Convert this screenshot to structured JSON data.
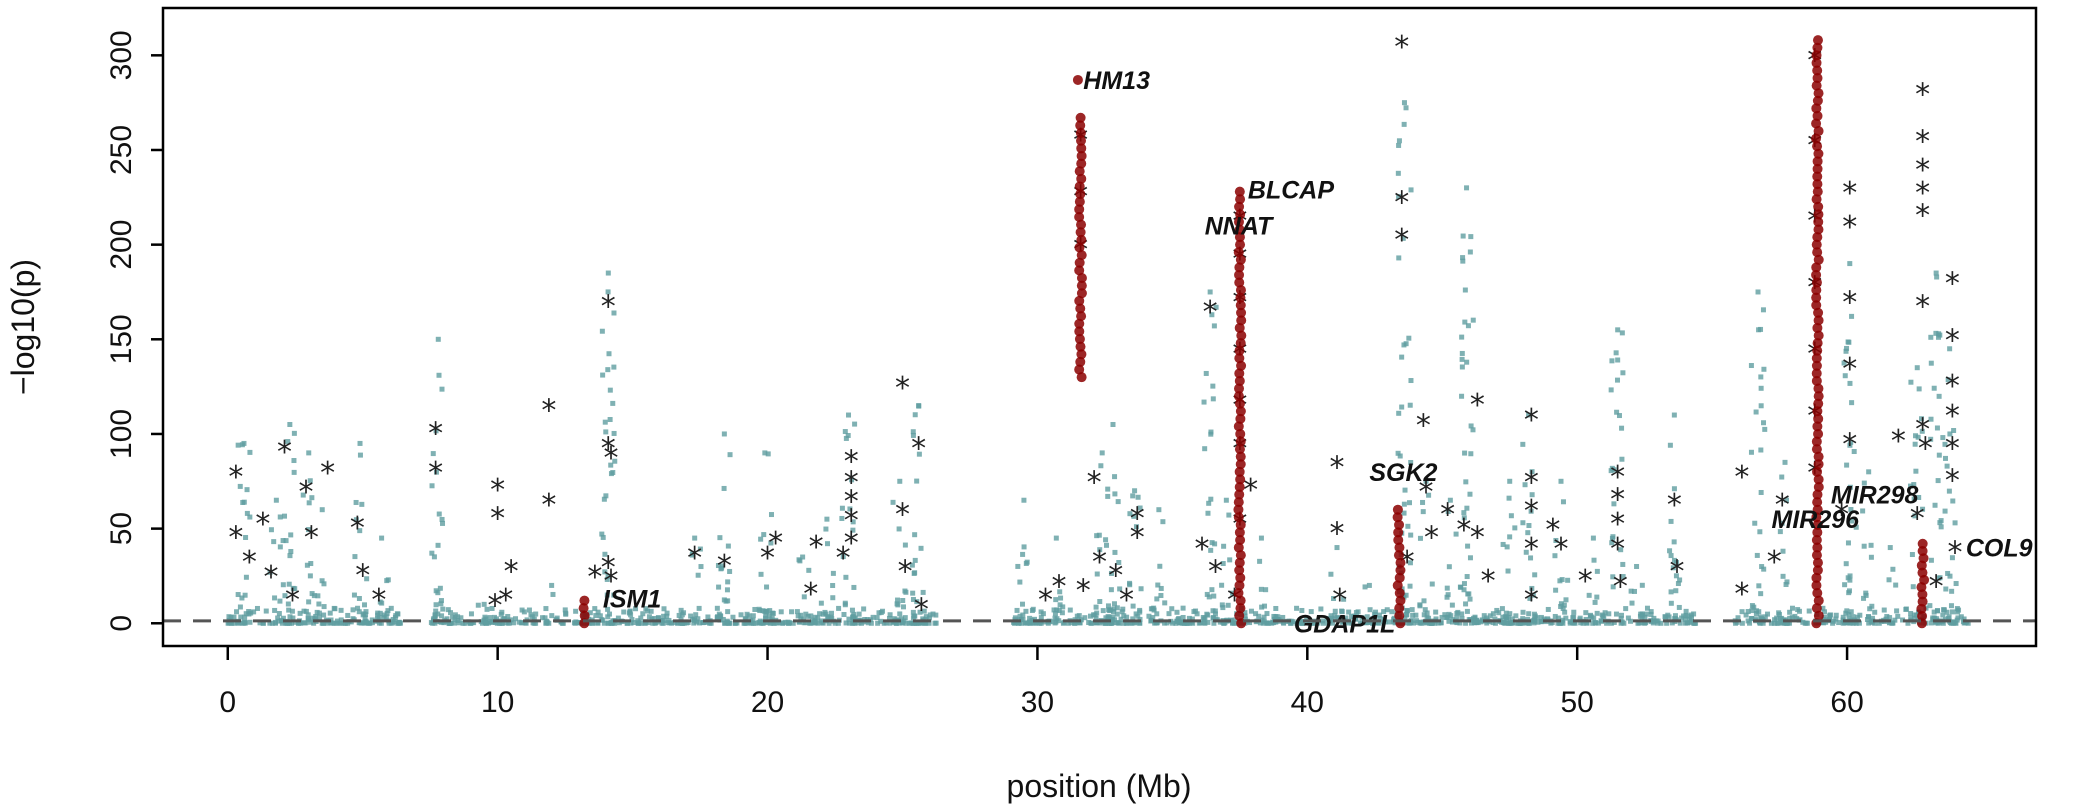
{
  "chart_data": {
    "type": "scatter",
    "title": "",
    "xlabel": "position (Mb)",
    "ylabel": "−log10(p)",
    "xlim": [
      -2.4,
      67
    ],
    "ylim": [
      -12,
      325
    ],
    "xticks": [
      0,
      10,
      20,
      30,
      40,
      50,
      60
    ],
    "yticks": [
      0,
      50,
      100,
      150,
      200,
      250,
      300
    ],
    "threshold": 1.3,
    "colors": {
      "background_points": "#5f9ea0",
      "highlight_points": "#8b0000",
      "star_points": "#222222",
      "threshold_line": "#555555"
    },
    "series": [
      {
        "role": "background",
        "marker": "square",
        "columns": [
          {
            "x": 0.6,
            "max": 95
          },
          {
            "x": 1.8,
            "max": 65
          },
          {
            "x": 2.3,
            "max": 105
          },
          {
            "x": 3.0,
            "max": 90
          },
          {
            "x": 3.5,
            "max": 60
          },
          {
            "x": 4.9,
            "max": 95
          },
          {
            "x": 5.7,
            "max": 45
          },
          {
            "x": 7.8,
            "max": 150
          },
          {
            "x": 9.5,
            "max": 10
          },
          {
            "x": 12.0,
            "max": 20
          },
          {
            "x": 14.1,
            "max": 185
          },
          {
            "x": 17.3,
            "max": 45
          },
          {
            "x": 18.4,
            "max": 100
          },
          {
            "x": 19.9,
            "max": 90
          },
          {
            "x": 21.3,
            "max": 35
          },
          {
            "x": 22.2,
            "max": 55
          },
          {
            "x": 23.0,
            "max": 110
          },
          {
            "x": 24.9,
            "max": 75
          },
          {
            "x": 25.6,
            "max": 115
          },
          {
            "x": 29.5,
            "max": 65
          },
          {
            "x": 30.7,
            "max": 45
          },
          {
            "x": 32.4,
            "max": 90
          },
          {
            "x": 32.8,
            "max": 105
          },
          {
            "x": 33.6,
            "max": 70
          },
          {
            "x": 34.5,
            "max": 60
          },
          {
            "x": 36.4,
            "max": 175
          },
          {
            "x": 37.0,
            "max": 65
          },
          {
            "x": 38.3,
            "max": 45
          },
          {
            "x": 41.1,
            "max": 40
          },
          {
            "x": 42.3,
            "max": 20
          },
          {
            "x": 43.6,
            "max": 275
          },
          {
            "x": 44.4,
            "max": 75
          },
          {
            "x": 45.3,
            "max": 65
          },
          {
            "x": 45.9,
            "max": 230
          },
          {
            "x": 47.5,
            "max": 75
          },
          {
            "x": 48.2,
            "max": 110
          },
          {
            "x": 49.4,
            "max": 75
          },
          {
            "x": 50.6,
            "max": 45
          },
          {
            "x": 51.5,
            "max": 155
          },
          {
            "x": 52.2,
            "max": 30
          },
          {
            "x": 53.6,
            "max": 110
          },
          {
            "x": 56.7,
            "max": 175
          },
          {
            "x": 57.7,
            "max": 85
          },
          {
            "x": 60.1,
            "max": 190
          },
          {
            "x": 60.8,
            "max": 80
          },
          {
            "x": 61.6,
            "max": 40
          },
          {
            "x": 62.6,
            "max": 135
          },
          {
            "x": 63.3,
            "max": 185
          },
          {
            "x": 63.8,
            "max": 145
          }
        ]
      },
      {
        "role": "highlight",
        "marker": "circle",
        "columns": [
          {
            "x": 13.2,
            "min": 0,
            "max": 12
          },
          {
            "x": 31.6,
            "min": 130,
            "max": 267
          },
          {
            "x": 37.5,
            "min": 0,
            "max": 228
          },
          {
            "x": 43.4,
            "min": 0,
            "max": 60
          },
          {
            "x": 58.9,
            "min": 0,
            "max": 308
          },
          {
            "x": 62.8,
            "min": 0,
            "max": 42
          }
        ],
        "points": [
          {
            "x": 31.5,
            "y": 287
          }
        ]
      },
      {
        "role": "top-hits",
        "marker": "star",
        "points": [
          {
            "x": 0.3,
            "y": 80
          },
          {
            "x": 0.3,
            "y": 48
          },
          {
            "x": 0.8,
            "y": 35
          },
          {
            "x": 1.3,
            "y": 55
          },
          {
            "x": 1.6,
            "y": 27
          },
          {
            "x": 2.1,
            "y": 93
          },
          {
            "x": 2.4,
            "y": 15
          },
          {
            "x": 2.9,
            "y": 72
          },
          {
            "x": 3.1,
            "y": 48
          },
          {
            "x": 3.7,
            "y": 82
          },
          {
            "x": 4.8,
            "y": 53
          },
          {
            "x": 5.0,
            "y": 28
          },
          {
            "x": 5.6,
            "y": 15
          },
          {
            "x": 7.7,
            "y": 103
          },
          {
            "x": 7.7,
            "y": 82
          },
          {
            "x": 9.9,
            "y": 12
          },
          {
            "x": 10.0,
            "y": 73
          },
          {
            "x": 10.0,
            "y": 58
          },
          {
            "x": 10.3,
            "y": 15
          },
          {
            "x": 10.5,
            "y": 30
          },
          {
            "x": 11.9,
            "y": 115
          },
          {
            "x": 11.9,
            "y": 65
          },
          {
            "x": 13.6,
            "y": 27
          },
          {
            "x": 14.1,
            "y": 170
          },
          {
            "x": 14.1,
            "y": 95
          },
          {
            "x": 14.1,
            "y": 32
          },
          {
            "x": 14.2,
            "y": 25
          },
          {
            "x": 14.2,
            "y": 90
          },
          {
            "x": 17.3,
            "y": 37
          },
          {
            "x": 18.4,
            "y": 33
          },
          {
            "x": 20.0,
            "y": 37
          },
          {
            "x": 20.3,
            "y": 45
          },
          {
            "x": 21.6,
            "y": 18
          },
          {
            "x": 21.8,
            "y": 43
          },
          {
            "x": 22.8,
            "y": 37
          },
          {
            "x": 23.1,
            "y": 88
          },
          {
            "x": 23.1,
            "y": 77
          },
          {
            "x": 23.1,
            "y": 67
          },
          {
            "x": 23.1,
            "y": 57
          },
          {
            "x": 23.1,
            "y": 45
          },
          {
            "x": 25.0,
            "y": 127
          },
          {
            "x": 25.0,
            "y": 60
          },
          {
            "x": 25.1,
            "y": 30
          },
          {
            "x": 25.6,
            "y": 95
          },
          {
            "x": 25.7,
            "y": 10
          },
          {
            "x": 30.3,
            "y": 15
          },
          {
            "x": 30.8,
            "y": 22
          },
          {
            "x": 31.6,
            "y": 258
          },
          {
            "x": 31.6,
            "y": 228
          },
          {
            "x": 31.6,
            "y": 200
          },
          {
            "x": 31.7,
            "y": 20
          },
          {
            "x": 32.1,
            "y": 77
          },
          {
            "x": 32.3,
            "y": 35
          },
          {
            "x": 32.9,
            "y": 28
          },
          {
            "x": 33.7,
            "y": 48
          },
          {
            "x": 33.7,
            "y": 58
          },
          {
            "x": 33.3,
            "y": 15
          },
          {
            "x": 36.1,
            "y": 42
          },
          {
            "x": 36.4,
            "y": 167
          },
          {
            "x": 36.6,
            "y": 30
          },
          {
            "x": 37.3,
            "y": 15
          },
          {
            "x": 37.5,
            "y": 215
          },
          {
            "x": 37.5,
            "y": 195
          },
          {
            "x": 37.5,
            "y": 172
          },
          {
            "x": 37.5,
            "y": 145
          },
          {
            "x": 37.5,
            "y": 118
          },
          {
            "x": 37.5,
            "y": 95
          },
          {
            "x": 37.5,
            "y": 55
          },
          {
            "x": 37.9,
            "y": 73
          },
          {
            "x": 41.1,
            "y": 85
          },
          {
            "x": 41.1,
            "y": 50
          },
          {
            "x": 41.2,
            "y": 15
          },
          {
            "x": 43.5,
            "y": 307
          },
          {
            "x": 43.5,
            "y": 225
          },
          {
            "x": 43.5,
            "y": 205
          },
          {
            "x": 43.7,
            "y": 35
          },
          {
            "x": 44.3,
            "y": 107
          },
          {
            "x": 44.4,
            "y": 72
          },
          {
            "x": 44.6,
            "y": 48
          },
          {
            "x": 45.2,
            "y": 60
          },
          {
            "x": 45.8,
            "y": 52
          },
          {
            "x": 46.3,
            "y": 118
          },
          {
            "x": 46.3,
            "y": 48
          },
          {
            "x": 46.7,
            "y": 25
          },
          {
            "x": 48.3,
            "y": 110
          },
          {
            "x": 48.3,
            "y": 77
          },
          {
            "x": 48.3,
            "y": 62
          },
          {
            "x": 48.3,
            "y": 42
          },
          {
            "x": 48.3,
            "y": 15
          },
          {
            "x": 49.1,
            "y": 52
          },
          {
            "x": 49.4,
            "y": 42
          },
          {
            "x": 50.3,
            "y": 25
          },
          {
            "x": 51.5,
            "y": 80
          },
          {
            "x": 51.5,
            "y": 68
          },
          {
            "x": 51.5,
            "y": 55
          },
          {
            "x": 51.5,
            "y": 42
          },
          {
            "x": 51.6,
            "y": 22
          },
          {
            "x": 53.6,
            "y": 65
          },
          {
            "x": 53.7,
            "y": 30
          },
          {
            "x": 56.1,
            "y": 80
          },
          {
            "x": 56.1,
            "y": 18
          },
          {
            "x": 57.3,
            "y": 35
          },
          {
            "x": 57.6,
            "y": 65
          },
          {
            "x": 58.8,
            "y": 300
          },
          {
            "x": 58.8,
            "y": 255
          },
          {
            "x": 58.8,
            "y": 215
          },
          {
            "x": 58.8,
            "y": 180
          },
          {
            "x": 58.8,
            "y": 145
          },
          {
            "x": 58.8,
            "y": 112
          },
          {
            "x": 58.8,
            "y": 82
          },
          {
            "x": 59.8,
            "y": 60
          },
          {
            "x": 60.1,
            "y": 230
          },
          {
            "x": 60.1,
            "y": 212
          },
          {
            "x": 60.1,
            "y": 172
          },
          {
            "x": 60.1,
            "y": 137
          },
          {
            "x": 60.1,
            "y": 97
          },
          {
            "x": 61.9,
            "y": 99
          },
          {
            "x": 62.8,
            "y": 282
          },
          {
            "x": 62.8,
            "y": 257
          },
          {
            "x": 62.8,
            "y": 242
          },
          {
            "x": 62.8,
            "y": 230
          },
          {
            "x": 62.8,
            "y": 218
          },
          {
            "x": 62.8,
            "y": 170
          },
          {
            "x": 62.8,
            "y": 105
          },
          {
            "x": 62.6,
            "y": 58
          },
          {
            "x": 62.9,
            "y": 95
          },
          {
            "x": 63.3,
            "y": 22
          },
          {
            "x": 63.9,
            "y": 182
          },
          {
            "x": 63.9,
            "y": 152
          },
          {
            "x": 63.9,
            "y": 128
          },
          {
            "x": 63.9,
            "y": 112
          },
          {
            "x": 63.9,
            "y": 95
          },
          {
            "x": 63.9,
            "y": 78
          },
          {
            "x": 64.0,
            "y": 40
          }
        ]
      }
    ],
    "annotations": [
      {
        "text": "HM13",
        "x": 31.7,
        "y": 287
      },
      {
        "text": "BLCAP",
        "x": 37.8,
        "y": 229
      },
      {
        "text": "NNAT",
        "x": 36.2,
        "y": 210
      },
      {
        "text": "ISM1",
        "x": 13.9,
        "y": 13
      },
      {
        "text": "SGK2",
        "x": 42.3,
        "y": 80
      },
      {
        "text": "GDAP1L",
        "x": 39.5,
        "y": 0
      },
      {
        "text": "MIR298",
        "x": 59.4,
        "y": 68
      },
      {
        "text": "MIR296",
        "x": 57.2,
        "y": 55
      },
      {
        "text": "COL9",
        "x": 64.4,
        "y": 40
      }
    ]
  }
}
